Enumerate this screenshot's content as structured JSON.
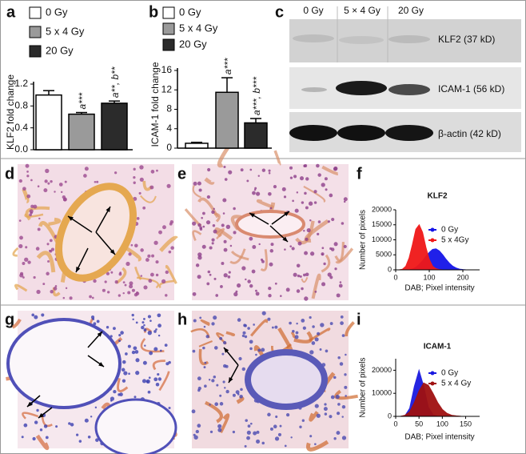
{
  "panel_labels": [
    "a",
    "b",
    "c",
    "d",
    "e",
    "f",
    "g",
    "h",
    "i"
  ],
  "blot": {
    "lanes": [
      "0 Gy",
      "5 × 4 Gy",
      "20 Gy"
    ],
    "bands": [
      "KLF2 (37 kD)",
      "ICAM-1 (56 kD)",
      "β-actin (42 kD)"
    ]
  },
  "chart_data": [
    {
      "type": "bar",
      "ylabel": "KLF2 fold change",
      "ylim": [
        0,
        1.2
      ],
      "yticks": [
        {
          "value": 0,
          "label": "0.0"
        },
        0.4,
        0.8,
        1.2
      ],
      "series": [
        {
          "name": "0 Gy",
          "color": "#ffffff",
          "values": [
            1.0
          ],
          "errors": [
            0.08
          ]
        },
        {
          "name": "5 x 4 Gy",
          "color": "#9a9a9a",
          "values": [
            0.65
          ],
          "errors": [
            0.03
          ],
          "annotation": "a***"
        },
        {
          "name": "20 Gy",
          "color": "#2b2b2b",
          "values": [
            0.85
          ],
          "errors": [
            0.04
          ],
          "annotation": "a**, b**"
        }
      ]
    },
    {
      "type": "bar",
      "ylabel": "ICAM-1 fold change",
      "ylim": [
        0,
        16
      ],
      "yticks": [
        0,
        4,
        8,
        12,
        16
      ],
      "series": [
        {
          "name": "0 Gy",
          "color": "#ffffff",
          "values": [
            1.0
          ],
          "errors": [
            0.2
          ]
        },
        {
          "name": "5 x 4 Gy",
          "color": "#9a9a9a",
          "values": [
            11.5
          ],
          "errors": [
            3.0
          ],
          "annotation": "a***"
        },
        {
          "name": "20 Gy",
          "color": "#2b2b2b",
          "values": [
            5.2
          ],
          "errors": [
            0.9
          ],
          "annotation": "a***, b***"
        }
      ]
    },
    {
      "type": "area",
      "title": "KLF2",
      "xlabel": "DAB; Pixel intensity",
      "ylabel": "Number of pixels",
      "xlim": [
        0,
        250
      ],
      "xticks": [
        0,
        100,
        200
      ],
      "ylim": [
        0,
        20000
      ],
      "yticks": [
        0,
        5000,
        10000,
        15000,
        20000
      ],
      "x": [
        0,
        10,
        20,
        30,
        40,
        50,
        60,
        70,
        80,
        90,
        100,
        110,
        120,
        130,
        140,
        150,
        160,
        170,
        180,
        190,
        200,
        210,
        220,
        230,
        240,
        250
      ],
      "series": [
        {
          "name": "0 Gy",
          "color": "#1515e8",
          "values": [
            0,
            0,
            0,
            0,
            0,
            300,
            800,
            1800,
            3000,
            4500,
            5800,
            6800,
            7000,
            6300,
            5000,
            3500,
            2200,
            1200,
            600,
            250,
            100,
            0,
            0,
            0,
            0,
            0
          ]
        },
        {
          "name": "5 x 4Gy",
          "color": "#f01818",
          "values": [
            0,
            0,
            200,
            1200,
            4000,
            8500,
            13500,
            15000,
            12500,
            7500,
            3500,
            1200,
            400,
            100,
            0,
            0,
            0,
            0,
            0,
            0,
            0,
            0,
            0,
            0,
            0,
            0
          ]
        }
      ]
    },
    {
      "type": "area",
      "title": "ICAM-1",
      "xlabel": "DAB; Pixel intensity",
      "ylabel": "Number of pixels",
      "xlim": [
        0,
        180
      ],
      "xticks": [
        0,
        50,
        100,
        150
      ],
      "ylim": [
        0,
        25000
      ],
      "yticks": [
        0,
        10000,
        20000
      ],
      "x": [
        0,
        10,
        20,
        30,
        40,
        50,
        60,
        70,
        80,
        90,
        100,
        110,
        120,
        130,
        140,
        150,
        160,
        170,
        180
      ],
      "series": [
        {
          "name": "0 Gy",
          "color": "#1a1ae0",
          "values": [
            0,
            0,
            300,
            3500,
            13000,
            20000,
            13000,
            4000,
            700,
            100,
            0,
            0,
            0,
            0,
            0,
            0,
            0,
            0,
            0
          ]
        },
        {
          "name": "5 x 4 Gy",
          "color": "#a01010",
          "values": [
            0,
            0,
            500,
            2000,
            6000,
            11000,
            14500,
            13500,
            10000,
            6000,
            3000,
            1300,
            500,
            200,
            50,
            0,
            0,
            0,
            0
          ]
        }
      ]
    }
  ]
}
